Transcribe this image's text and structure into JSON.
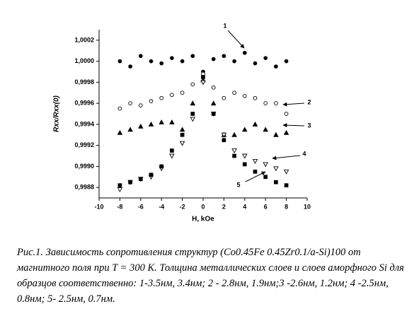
{
  "chart_data": {
    "type": "scatter",
    "x_label": "H, kOe",
    "y_label": "Rxx/Rxx(0)",
    "xlim": [
      -10,
      10
    ],
    "xticks": [
      -10,
      -8,
      -6,
      -4,
      -2,
      0,
      2,
      4,
      6,
      8,
      10
    ],
    "ylim": [
      0.9987,
      1.0003
    ],
    "yticks": [
      {
        "value": 0.9988,
        "label": "0,9988"
      },
      {
        "value": 0.999,
        "label": "0,9990"
      },
      {
        "value": 0.9992,
        "label": "0,9992"
      },
      {
        "value": 0.9994,
        "label": "0,9994"
      },
      {
        "value": 0.9996,
        "label": "0,9996"
      },
      {
        "value": 0.9998,
        "label": "0,9998"
      },
      {
        "value": 1.0,
        "label": "1,0000"
      },
      {
        "value": 1.0002,
        "label": "1,0002"
      }
    ],
    "x": [
      -8,
      -7,
      -6,
      -5,
      -4,
      -3,
      -2,
      -1,
      0,
      1,
      2,
      3,
      4,
      5,
      6,
      7,
      8
    ],
    "series": [
      {
        "name": "1",
        "marker": "circle-filled",
        "color": "#000000",
        "values": [
          1.0,
          0.99995,
          1.00005,
          1.0,
          0.99998,
          1.00003,
          1.0,
          1.00005,
          0.9999,
          1.00002,
          1.00005,
          1.0,
          1.00008,
          0.99998,
          1.00003,
          0.99995,
          1.0
        ]
      },
      {
        "name": "2",
        "marker": "circle-open",
        "color": "#000000",
        "values": [
          0.99955,
          0.9996,
          0.99958,
          0.99962,
          0.99965,
          0.99968,
          0.9997,
          0.99978,
          0.99988,
          0.99975,
          0.99965,
          0.9997,
          0.99967,
          0.99965,
          0.9996,
          0.9996,
          0.9995
        ]
      },
      {
        "name": "3",
        "marker": "triangle-filled",
        "color": "#000000",
        "values": [
          0.99932,
          0.99935,
          0.99938,
          0.9994,
          0.99942,
          0.99942,
          0.99935,
          0.9996,
          0.99982,
          0.9996,
          0.9993,
          0.9993,
          0.99935,
          0.9994,
          0.99935,
          0.9993,
          0.99932
        ]
      },
      {
        "name": "4",
        "marker": "triangle-down-open",
        "color": "#000000",
        "values": [
          0.99878,
          0.99885,
          0.99888,
          0.9989,
          0.99898,
          0.9991,
          0.99922,
          0.99945,
          0.9998,
          0.9995,
          0.9993,
          0.99915,
          0.9991,
          0.99905,
          0.99902,
          0.99898,
          0.99895
        ]
      },
      {
        "name": "5",
        "marker": "square-filled",
        "color": "#000000",
        "values": [
          0.99882,
          0.99885,
          0.99888,
          0.99892,
          0.999,
          0.99915,
          0.9993,
          0.9995,
          0.99985,
          0.9995,
          0.99925,
          0.9991,
          0.99902,
          0.99895,
          0.9989,
          0.99885,
          0.99882
        ]
      }
    ]
  },
  "caption": "Рис.1. Зависимость сопротивления структур (Co0.45Fe 0.45Zr0.1/a-Si)100 от магнитного поля при T = 300 K. Толщина металлических слоев и слоев аморфного Si для образцов соответственно: 1-3.5нм, 3.4нм; 2 - 2.8нм, 1.9нм;3 -2.6нм, 1.2нм; 4 -2.5нм, 0.8нм; 5- 2.5нм, 0.7нм."
}
